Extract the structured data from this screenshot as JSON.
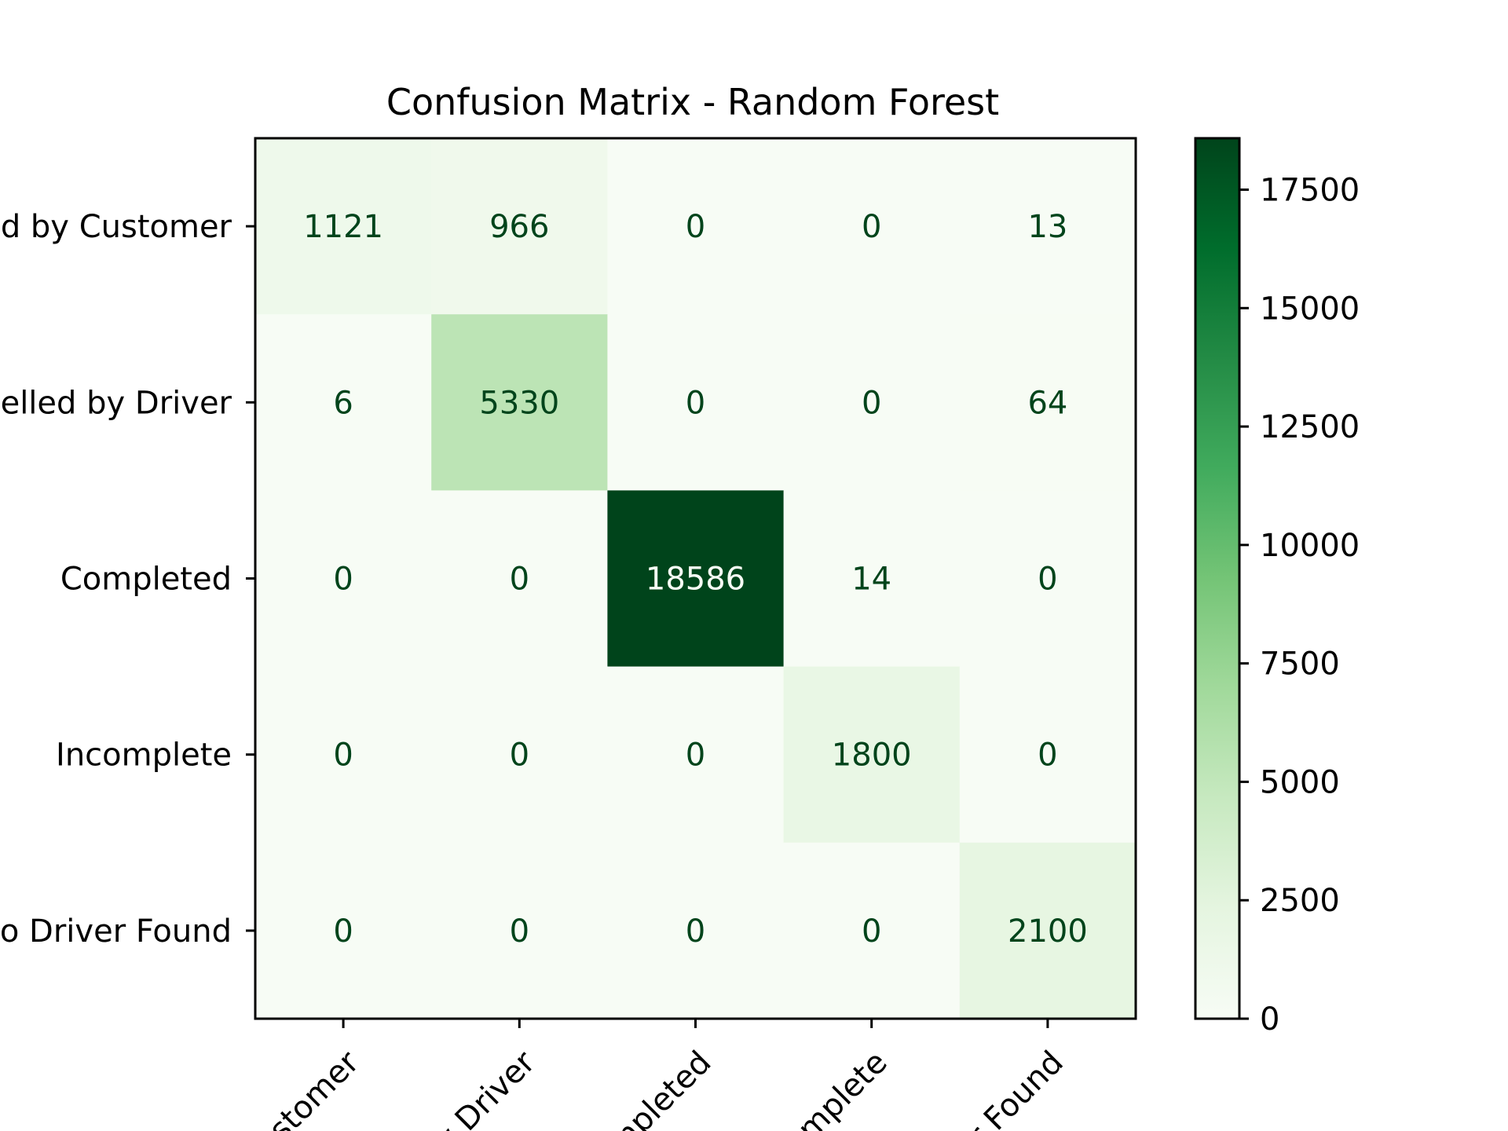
{
  "chart_data": {
    "type": "heatmap",
    "title": "Confusion Matrix - Random Forest",
    "xlabel": "",
    "ylabel": "",
    "y_tick_labels": [
      "d by Customer",
      "elled by Driver",
      "Completed",
      "Incomplete",
      "o Driver Found"
    ],
    "x_tick_labels": [
      "ustomer",
      "y Driver",
      "mpleted",
      "omplete",
      "er Found"
    ],
    "values": [
      [
        1121,
        966,
        0,
        0,
        13
      ],
      [
        6,
        5330,
        0,
        0,
        64
      ],
      [
        0,
        0,
        18586,
        14,
        0
      ],
      [
        0,
        0,
        0,
        1800,
        0
      ],
      [
        0,
        0,
        0,
        0,
        2100
      ]
    ],
    "colormap": "Greens",
    "color_range": [
      0,
      18586
    ],
    "colorbar_ticks": [
      0,
      2500,
      5000,
      7500,
      10000,
      12500,
      15000,
      17500
    ],
    "grid": false
  }
}
